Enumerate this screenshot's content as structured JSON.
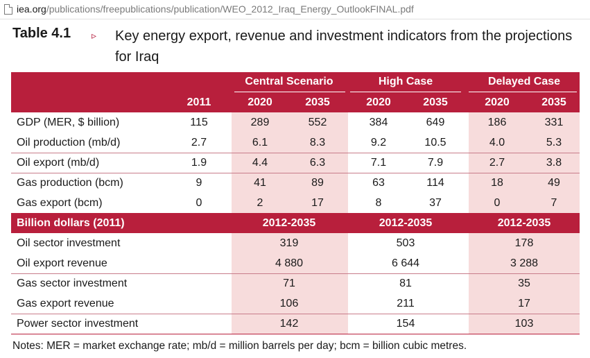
{
  "browser": {
    "url_domain": "iea.org",
    "url_path": "/publications/freepublications/publication/WEO_2012_Iraq_Energy_OutlookFINAL.pdf"
  },
  "heading": {
    "table_label": "Table 4.1",
    "marker": "▹",
    "title": "Key energy export, revenue and investment indicators from the projections for Iraq"
  },
  "table": {
    "groups": [
      "Central Scenario",
      "High Case",
      "Delayed Case"
    ],
    "years": [
      "2011",
      "2020",
      "2035",
      "2020",
      "2035",
      "2020",
      "2035"
    ],
    "rows": [
      {
        "label": "GDP (MER, $ billion)",
        "values": [
          "115",
          "289",
          "552",
          "384",
          "649",
          "186",
          "331"
        ]
      },
      {
        "label": "Oil production (mb/d)",
        "values": [
          "2.7",
          "6.1",
          "8.3",
          "9.2",
          "10.5",
          "4.0",
          "5.3"
        ]
      },
      {
        "label": "Oil export (mb/d)",
        "values": [
          "1.9",
          "4.4",
          "6.3",
          "7.1",
          "7.9",
          "2.7",
          "3.8"
        ]
      },
      {
        "label": "Gas production (bcm)",
        "values": [
          "9",
          "41",
          "89",
          "63",
          "114",
          "18",
          "49"
        ]
      },
      {
        "label": "Gas export (bcm)",
        "values": [
          "0",
          "2",
          "17",
          "8",
          "37",
          "0",
          "7"
        ]
      }
    ],
    "section": {
      "label": "Billion dollars (2011)",
      "periods": [
        "2012-2035",
        "2012-2035",
        "2012-2035"
      ]
    },
    "rows2": [
      {
        "label": "Oil sector investment",
        "values": [
          "319",
          "503",
          "178"
        ]
      },
      {
        "label": "Oil export revenue",
        "values": [
          "4 880",
          "6 644",
          "3 288"
        ]
      },
      {
        "label": "Gas sector investment",
        "values": [
          "71",
          "81",
          "35"
        ]
      },
      {
        "label": "Gas export revenue",
        "values": [
          "106",
          "211",
          "17"
        ]
      },
      {
        "label": "Power sector investment",
        "values": [
          "142",
          "154",
          "103"
        ]
      }
    ]
  },
  "notes": "Notes: MER = market exchange rate; mb/d = million barrels per day; bcm = billion cubic metres.",
  "colors": {
    "header": "#b81f3c",
    "shade": "#f7dcdc",
    "accent": "#b61f3f"
  }
}
